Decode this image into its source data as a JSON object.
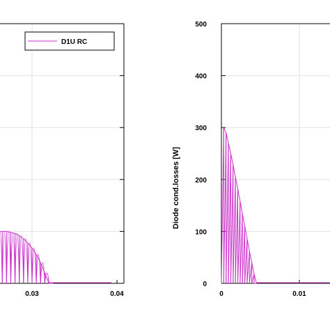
{
  "chart_data": [
    {
      "type": "line",
      "title": "",
      "xlabel": "",
      "ylabel": "",
      "xlim": [
        0.0,
        0.04
      ],
      "ylim": [
        0,
        500
      ],
      "xticks": [
        "0.03",
        "0.04"
      ],
      "grid": true,
      "legend": {
        "entries": [
          "D1U RC"
        ],
        "placement": "top-right"
      },
      "series": [
        {
          "name": "D1U RC",
          "color": "#cc33cc",
          "style": "rectified half-sine pulses",
          "x": [
            0.025,
            0.0255,
            0.026,
            0.0265,
            0.027,
            0.0275,
            0.028,
            0.0285,
            0.029,
            0.0295,
            0.03,
            0.0305,
            0.031,
            0.0315,
            0.032
          ],
          "y": [
            60,
            96,
            99,
            100,
            100,
            98,
            96,
            92,
            86,
            78,
            68,
            56,
            40,
            20,
            0
          ]
        }
      ]
    },
    {
      "type": "line",
      "title": "",
      "xlabel": "",
      "ylabel": "Diode cond.losses [W]",
      "xlim": [
        0,
        0.02
      ],
      "ylim": [
        0,
        500
      ],
      "xticks": [
        "0",
        "0.01"
      ],
      "yticks": [
        "0",
        "100",
        "200",
        "300",
        "400",
        "500"
      ],
      "grid": true,
      "series": [
        {
          "color": "#cc33cc",
          "style": "rectified half-sine pulses",
          "x": [
            0.0003,
            0.0006,
            0.0009,
            0.0012,
            0.0015,
            0.0018,
            0.0021,
            0.0024,
            0.0027,
            0.003,
            0.0033,
            0.0036,
            0.0039,
            0.0042,
            0.0045
          ],
          "y": [
            300,
            290,
            270,
            250,
            228,
            205,
            182,
            158,
            134,
            110,
            86,
            62,
            40,
            18,
            0
          ]
        }
      ]
    }
  ]
}
